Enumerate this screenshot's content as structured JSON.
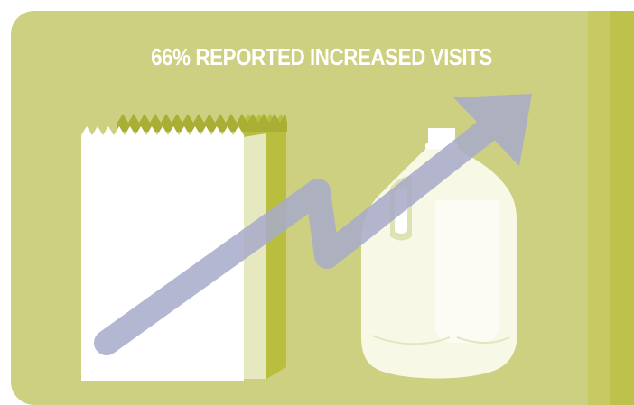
{
  "headline": "66% REPORTED INCREASED VISITS",
  "icons": {
    "bag": "paper-bag-icon",
    "jug": "milk-jug-icon",
    "arrow": "trend-arrow-icon"
  },
  "colors": {
    "panel": "#cdd081",
    "side_band": "#bdc24d",
    "bag_shadow": "#b9be3e",
    "arrow": "#a8abc9",
    "text": "#ffffff"
  }
}
